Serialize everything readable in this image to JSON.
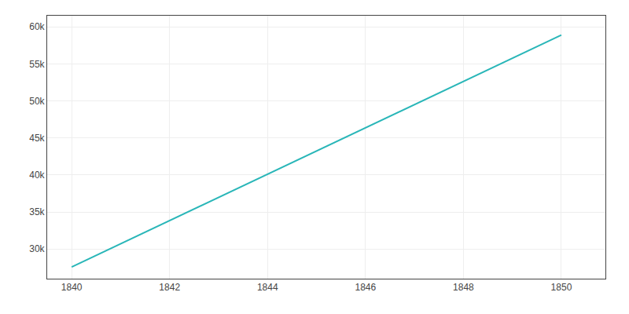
{
  "chart_data": {
    "type": "line",
    "x": [
      1840,
      1850
    ],
    "values": [
      27570,
      58894
    ],
    "color": "#29b6b8",
    "xlim": [
      1839.5,
      1850.9
    ],
    "ylim": [
      26000,
      61500
    ],
    "xticks": [
      1840,
      1842,
      1844,
      1846,
      1848,
      1850
    ],
    "yticks": [
      {
        "value": 30000,
        "label": "30k"
      },
      {
        "value": 35000,
        "label": "35k"
      },
      {
        "value": 40000,
        "label": "40k"
      },
      {
        "value": 45000,
        "label": "45k"
      },
      {
        "value": 50000,
        "label": "50k"
      },
      {
        "value": 55000,
        "label": "55k"
      },
      {
        "value": 60000,
        "label": "60k"
      }
    ],
    "grid": true
  }
}
